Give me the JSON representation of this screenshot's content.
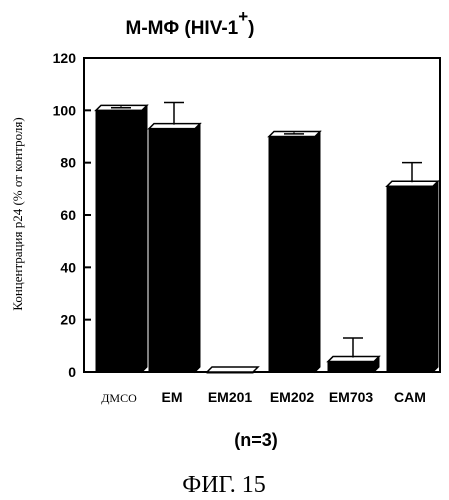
{
  "chart_data": {
    "type": "bar",
    "title": "M-MΦ (HIV-1",
    "title_superscript": "+",
    "title_close": ")",
    "ylabel": "Концентрация p24 (% от контроля)",
    "xlabel": "",
    "ylim": [
      0,
      120
    ],
    "yticks": [
      0,
      20,
      40,
      60,
      80,
      100,
      120
    ],
    "categories": [
      "ДМСО",
      "EM",
      "EM201",
      "EM202",
      "EM703",
      "CAM"
    ],
    "values": [
      100,
      93,
      0,
      90,
      4,
      71
    ],
    "errors": [
      1,
      10,
      0,
      1,
      9,
      9
    ],
    "grid": false,
    "bar_style": "3d"
  },
  "note": "(n=3)",
  "figure_caption": "ФИГ. 15"
}
